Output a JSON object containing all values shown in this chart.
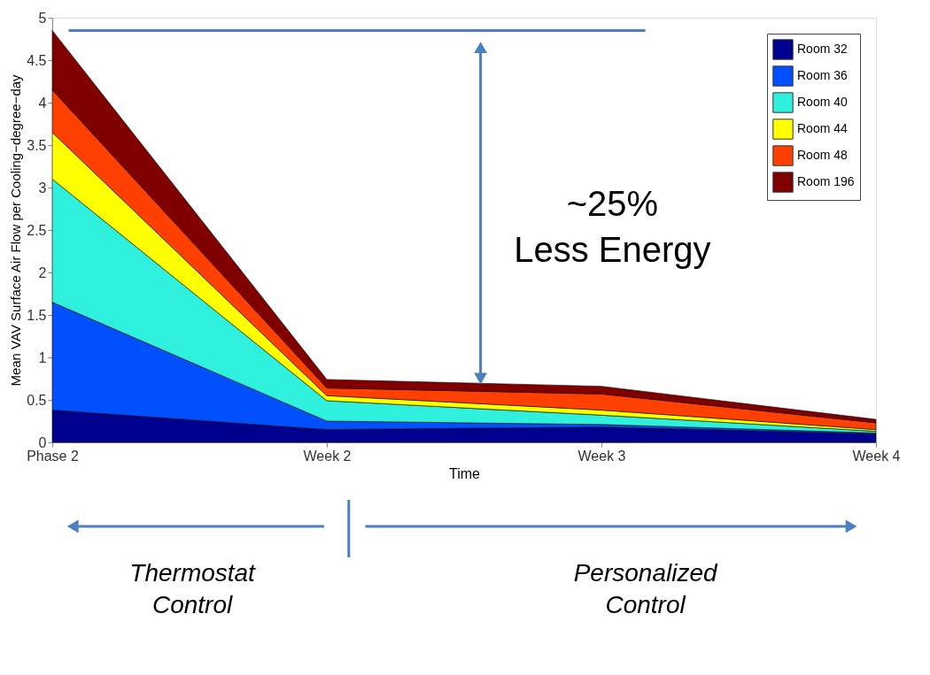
{
  "chart_data": {
    "type": "area",
    "stacked": true,
    "xlabel": "Time",
    "ylabel": "Mean VAV Surface Air Flow per Cooling−degree−day",
    "categories": [
      "Phase 2",
      "Week 2",
      "Week 3",
      "Week 4"
    ],
    "series": [
      {
        "name": "Room 32",
        "color": "#00008f",
        "values": [
          0.38,
          0.15,
          0.18,
          0.1
        ]
      },
      {
        "name": "Room 36",
        "color": "#0050ff",
        "values": [
          1.27,
          0.1,
          0.03,
          0.01
        ]
      },
      {
        "name": "Room 40",
        "color": "#2ff0dc",
        "values": [
          1.45,
          0.24,
          0.11,
          0.02
        ]
      },
      {
        "name": "Room 44",
        "color": "#ffff00",
        "values": [
          0.55,
          0.06,
          0.06,
          0.02
        ]
      },
      {
        "name": "Room 48",
        "color": "#ff4000",
        "values": [
          0.5,
          0.09,
          0.19,
          0.08
        ]
      },
      {
        "name": "Room 196",
        "color": "#800000",
        "values": [
          0.7,
          0.1,
          0.09,
          0.04
        ]
      }
    ],
    "ylim": [
      0,
      5
    ],
    "yticks": [
      0,
      0.5,
      1,
      1.5,
      2,
      2.5,
      3,
      3.5,
      4,
      4.5,
      5
    ],
    "ref_lines": [
      {
        "axis": "y",
        "value": 4.85,
        "color": "#4a7fc1"
      }
    ],
    "grid": false,
    "legend": "top right",
    "annotations": [
      "~25% Less Energy",
      "Thermostat Control",
      "Personalized Control"
    ]
  }
}
